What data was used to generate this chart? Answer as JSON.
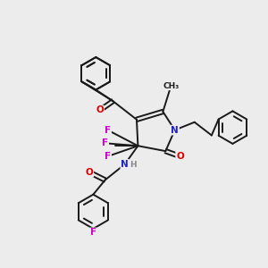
{
  "background_color": "#ececec",
  "atom_colors": {
    "C": "#1a1a1a",
    "N": "#2222cc",
    "O": "#dd0000",
    "F": "#cc00cc",
    "H": "#888888"
  },
  "bond_color": "#1a1a1a",
  "bond_width": 1.4,
  "figsize": [
    3.0,
    3.0
  ],
  "dpi": 100,
  "xlim": [
    0,
    10
  ],
  "ylim": [
    0,
    10
  ]
}
